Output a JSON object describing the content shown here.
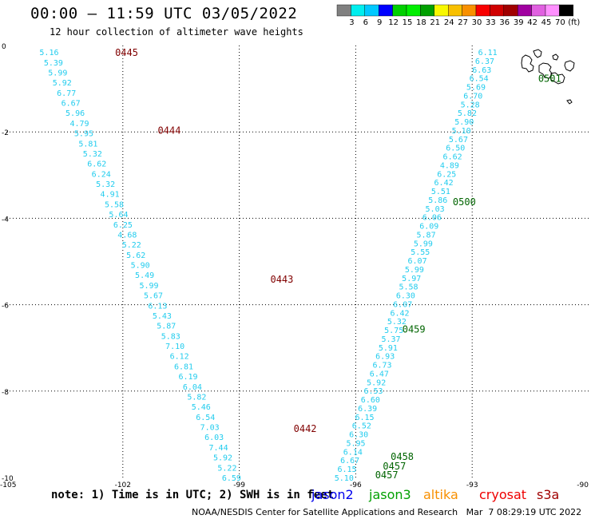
{
  "header": {
    "title": "00:00 – 11:59 UTC 03/05/2022",
    "subtitle": "12 hour collection of altimeter wave heights"
  },
  "colorbar": {
    "colors": [
      "#808080",
      "#00eeee",
      "#00c8ff",
      "#0000ff",
      "#00d000",
      "#00ee00",
      "#00a000",
      "#f8f800",
      "#f8c000",
      "#f89000",
      "#f80000",
      "#d00000",
      "#a00000",
      "#a000a0",
      "#e060e0",
      "#ff90ff",
      "#000000"
    ],
    "labels": [
      "3",
      "6",
      "9",
      "12",
      "15",
      "18",
      "21",
      "24",
      "27",
      "30",
      "33",
      "36",
      "39",
      "42",
      "45",
      "70",
      "(ft)"
    ]
  },
  "note": "note: 1) Time is in UTC; 2) SWH is in feet",
  "satellites": [
    {
      "name": "jason2",
      "color": "#0000ee"
    },
    {
      "name": "jason3",
      "color": "#00a000"
    },
    {
      "name": "altika",
      "color": "#f89000"
    },
    {
      "name": "cryosat",
      "color": "#ee0000"
    },
    {
      "name": "s3a",
      "color": "#a00000"
    }
  ],
  "footer": "NOAA/NESDIS Center for Satellite Applications and Research   Mar  7 08:29:19 UTC 2022",
  "chart_data": {
    "type": "scatter",
    "title": "00:00 – 11:59 UTC 03/05/2022",
    "subtitle": "12 hour collection of altimeter wave heights",
    "xlim": [
      -105,
      -90
    ],
    "ylim": [
      -10,
      0
    ],
    "x_ticks": [
      -105,
      -102,
      -99,
      -96,
      -93,
      -90
    ],
    "y_ticks": [
      0,
      -2,
      -4,
      -6,
      -8,
      -10
    ],
    "x_tick_labels": [
      "-105",
      "-102",
      "-99",
      "-96",
      "-93",
      "-90"
    ],
    "y_tick_labels": [
      "0",
      "-2",
      "-4",
      "-6",
      "-8",
      "-10"
    ],
    "grid": true,
    "series": [
      {
        "name": "track_west",
        "color": "#22ccee",
        "start": [
          -103.9,
          -0.15
        ],
        "end": [
          -99.2,
          -10.0
        ],
        "values": [
          "5.16",
          "5.39",
          "5.99",
          "5.92",
          "6.77",
          "6.67",
          "5.96",
          "4.79",
          "5.95",
          "5.81",
          "5.32",
          "6.62",
          "6.24",
          "5.32",
          "4.91",
          "5.58",
          "5.64",
          "6.25",
          "4.68",
          "5.22",
          "5.62",
          "5.90",
          "5.49",
          "5.99",
          "5.67",
          "6.13",
          "5.43",
          "5.87",
          "5.83",
          "7.10",
          "6.12",
          "6.81",
          "6.19",
          "6.04",
          "5.82",
          "5.46",
          "6.54",
          "7.03",
          "6.03",
          "7.44",
          "5.92",
          "5.22",
          "6.59"
        ]
      },
      {
        "name": "track_east",
        "color": "#22ccee",
        "start": [
          -92.6,
          -0.15
        ],
        "end": [
          -96.3,
          -10.0
        ],
        "values": [
          "6.11",
          "6.37",
          "6.63",
          "6.54",
          "5.69",
          "6.70",
          "5.28",
          "5.82",
          "5.90",
          "5.10",
          "5.67",
          "6.50",
          "6.62",
          "4.89",
          "6.25",
          "6.42",
          "5.51",
          "5.86",
          "5.03",
          "6.06",
          "6.09",
          "5.87",
          "5.99",
          "5.55",
          "6.07",
          "5.99",
          "5.97",
          "5.58",
          "6.30",
          "6.07",
          "6.42",
          "5.32",
          "5.75",
          "5.37",
          "5.91",
          "6.93",
          "6.73",
          "6.47",
          "5.92",
          "6.53",
          "6.60",
          "6.39",
          "6.15",
          "6.52",
          "6.30",
          "5.95",
          "6.14",
          "6.67",
          "6.15",
          "5.10"
        ]
      }
    ],
    "time_labels": [
      {
        "text": "0445",
        "x": -102.2,
        "y": -0.15,
        "color": "#800000"
      },
      {
        "text": "0444",
        "x": -101.1,
        "y": -1.95,
        "color": "#800000"
      },
      {
        "text": "0443",
        "x": -98.2,
        "y": -5.4,
        "color": "#800000"
      },
      {
        "text": "0442",
        "x": -97.6,
        "y": -8.85,
        "color": "#800000"
      },
      {
        "text": "0501",
        "x": -91.3,
        "y": -0.75,
        "color": "#006400"
      },
      {
        "text": "0500",
        "x": -93.5,
        "y": -3.6,
        "color": "#006400"
      },
      {
        "text": "0459",
        "x": -94.8,
        "y": -6.55,
        "color": "#006400"
      },
      {
        "text": "0458",
        "x": -95.1,
        "y": -9.5,
        "color": "#006400"
      },
      {
        "text": "0457",
        "x": -95.3,
        "y": -9.72,
        "color": "#006400"
      },
      {
        "text": "0457",
        "x": -95.5,
        "y": -9.93,
        "color": "#006400"
      }
    ]
  }
}
